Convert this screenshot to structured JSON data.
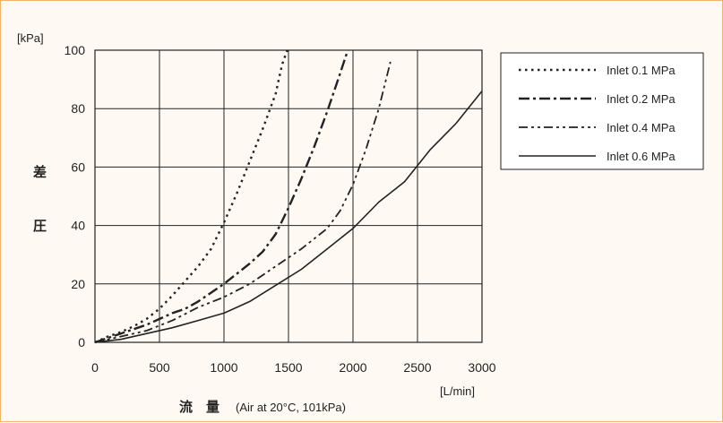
{
  "chart_data": {
    "type": "line",
    "title": "",
    "ylabel_unit": "[kPa]",
    "xlabel_unit": "[L/min]",
    "ylabel_jp_1": "差",
    "ylabel_jp_2": "圧",
    "xlabel_jp": "流　量",
    "xlabel_cond": "(Air at 20°C, 101kPa)",
    "xlim": [
      0,
      3000
    ],
    "ylim": [
      0,
      100
    ],
    "xticks": [
      0,
      500,
      1000,
      1500,
      2000,
      2500,
      3000
    ],
    "yticks": [
      0,
      20,
      40,
      60,
      80,
      100
    ],
    "grid": true,
    "legend_position": "top-right",
    "colors": {
      "line": "#222222",
      "grid": "#222222",
      "frame": "#f0b46a",
      "background": "#fefaf3"
    },
    "series": [
      {
        "name": "Inlet 0.1 MPa",
        "style": "dotted",
        "x": [
          0,
          100,
          200,
          300,
          400,
          500,
          600,
          700,
          800,
          900,
          1000,
          1100,
          1200,
          1300,
          1400,
          1450,
          1490
        ],
        "y": [
          0,
          2,
          3.5,
          5.5,
          8,
          11.5,
          16,
          21,
          26,
          32,
          41,
          51,
          62,
          73,
          85,
          95,
          100
        ]
      },
      {
        "name": "Inlet 0.2 MPa",
        "style": "dash-dot",
        "x": [
          0,
          100,
          200,
          300,
          400,
          500,
          600,
          700,
          800,
          900,
          1000,
          1100,
          1200,
          1300,
          1400,
          1500,
          1600,
          1700,
          1800,
          1900,
          1960
        ],
        "y": [
          0,
          1.5,
          3,
          4.5,
          6,
          8,
          10,
          11.5,
          14,
          17,
          20,
          23.5,
          27,
          31,
          37,
          46,
          56,
          67,
          79,
          92,
          100
        ]
      },
      {
        "name": "Inlet 0.4 MPa",
        "style": "dash-dot-dot",
        "x": [
          0,
          200,
          400,
          600,
          800,
          1000,
          1200,
          1400,
          1600,
          1800,
          1900,
          2000,
          2100,
          2200,
          2290
        ],
        "y": [
          0,
          2,
          4,
          7.5,
          12,
          15.5,
          20,
          26,
          32,
          39,
          45,
          54,
          66,
          80,
          96
        ]
      },
      {
        "name": "Inlet 0.6 MPa",
        "style": "solid",
        "x": [
          0,
          200,
          400,
          600,
          800,
          1000,
          1200,
          1400,
          1600,
          1800,
          2000,
          2200,
          2400,
          2600,
          2800,
          3000
        ],
        "y": [
          0,
          1,
          3,
          5,
          7.5,
          10,
          14,
          19.5,
          25,
          32,
          39,
          48,
          55,
          66,
          75,
          86
        ]
      }
    ]
  }
}
